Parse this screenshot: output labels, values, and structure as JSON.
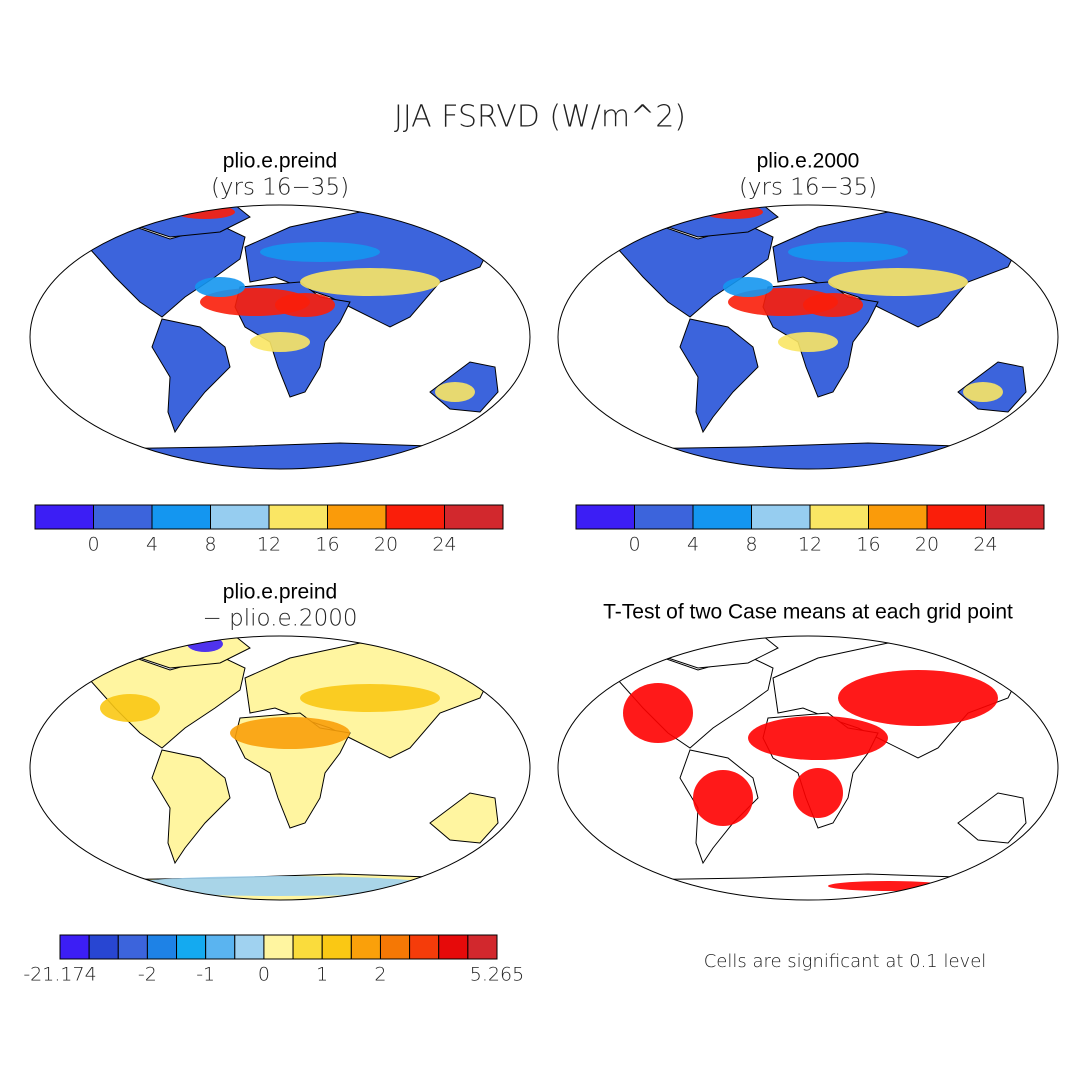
{
  "title": "JJA FSRVD (W/m^2)",
  "panels": [
    {
      "title": "plio.e.preind",
      "subtitle": "(yrs 16−35)",
      "colorbar": {
        "colors": [
          "#3c1ef5",
          "#3c64dc",
          "#1496f0",
          "#96cdf0",
          "#fae664",
          "#fa9b0a",
          "#fa1e0a",
          "#d2282d"
        ],
        "labels": [
          0,
          4,
          8,
          12,
          16,
          20,
          24
        ]
      }
    },
    {
      "title": "plio.e.2000",
      "subtitle": "(yrs 16−35)",
      "colorbar": {
        "colors": [
          "#3c1ef5",
          "#3c64dc",
          "#1496f0",
          "#96cdf0",
          "#fae664",
          "#fa9b0a",
          "#fa1e0a",
          "#d2282d"
        ],
        "labels": [
          0,
          4,
          8,
          12,
          16,
          20,
          24
        ]
      }
    },
    {
      "title": "plio.e.preind",
      "subtitle": "− plio.e.2000",
      "colorbar": {
        "colors": [
          "#3c1ef5",
          "#2846d2",
          "#3c64dc",
          "#1e82e6",
          "#14aaf0",
          "#5ab4f0",
          "#a0d2f0",
          "#fff5a0",
          "#fadc3c",
          "#fac814",
          "#faa00a",
          "#f57805",
          "#f53c0a",
          "#e60a0a",
          "#d2282d"
        ],
        "labels": [
          -21.174,
          -2,
          -1,
          0,
          1,
          2,
          5.265
        ]
      }
    },
    {
      "title": "T-Test of two Case means at each grid point",
      "note": "Cells are significant at 0.1 level",
      "color": "#ff0000"
    }
  ]
}
